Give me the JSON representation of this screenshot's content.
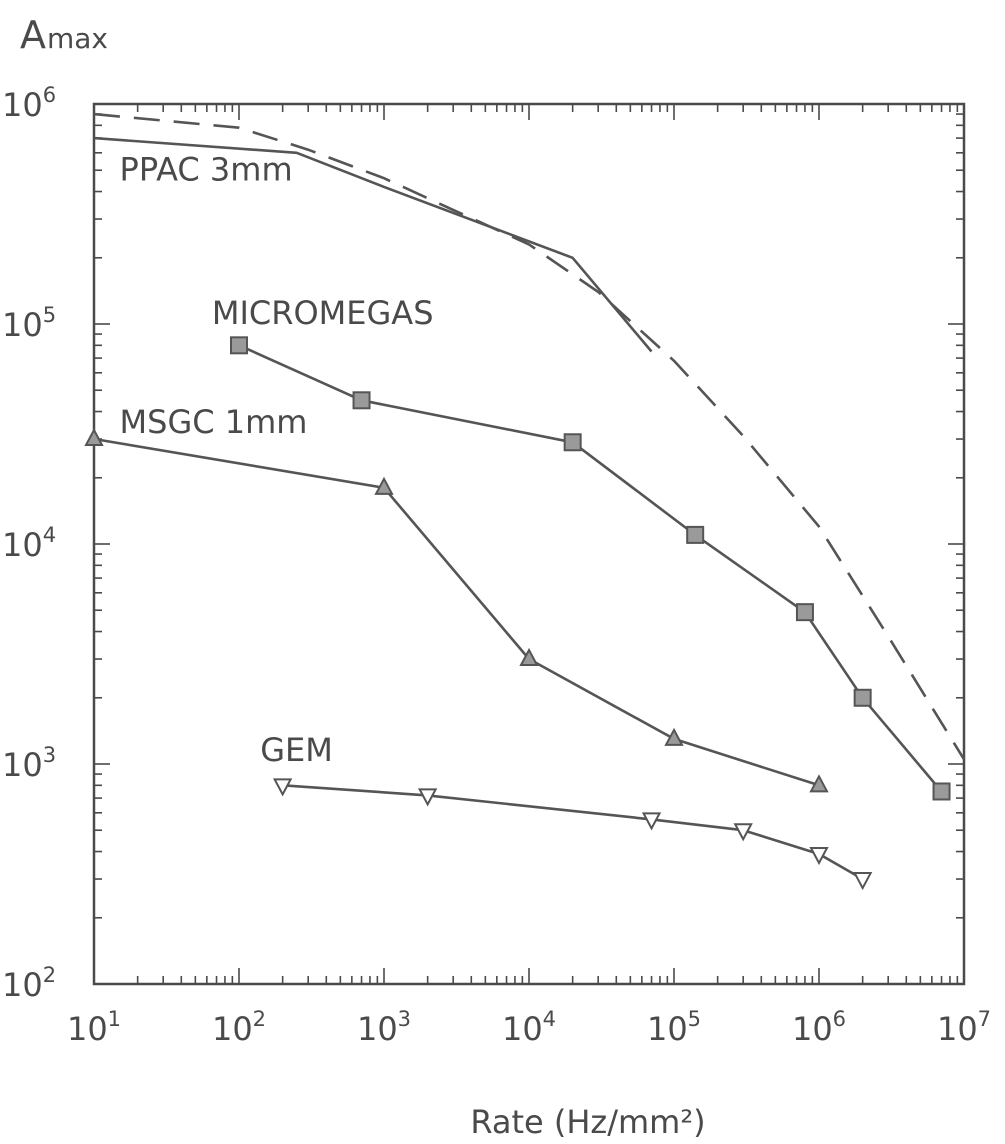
{
  "chart_data": {
    "type": "line",
    "title": "",
    "xlabel": "Rate (Hz/mm²)",
    "ylabel": "A",
    "ylabel_sub": "max",
    "xscale": "log",
    "yscale": "log",
    "xlim": [
      10,
      10000000
    ],
    "ylim": [
      100,
      1000000
    ],
    "xticks": [
      {
        "value": 10,
        "base": "10",
        "exp": "1"
      },
      {
        "value": 100,
        "base": "10",
        "exp": "2"
      },
      {
        "value": 1000,
        "base": "10",
        "exp": "3"
      },
      {
        "value": 10000,
        "base": "10",
        "exp": "4"
      },
      {
        "value": 100000,
        "base": "10",
        "exp": "5"
      },
      {
        "value": 1000000,
        "base": "10",
        "exp": "6"
      },
      {
        "value": 10000000,
        "base": "10",
        "exp": "7"
      }
    ],
    "yticks": [
      {
        "value": 100,
        "base": "10",
        "exp": "2"
      },
      {
        "value": 1000,
        "base": "10",
        "exp": "3"
      },
      {
        "value": 10000,
        "base": "10",
        "exp": "4"
      },
      {
        "value": 100000,
        "base": "10",
        "exp": "5"
      },
      {
        "value": 1000000,
        "base": "10",
        "exp": "6"
      }
    ],
    "grid": false,
    "legend": "none",
    "color": "#555555",
    "marker_fill": "#9a9a9a",
    "series": [
      {
        "name": "PPAC 3mm",
        "marker": "none",
        "dash": "none",
        "points": [
          [
            10,
            700000
          ],
          [
            250,
            600000
          ],
          [
            1000,
            420000
          ],
          [
            20000,
            200000
          ],
          [
            70000,
            75000
          ]
        ]
      },
      {
        "name": "",
        "marker": "none",
        "dash": "dashed",
        "points": [
          [
            10,
            900000
          ],
          [
            100,
            780000
          ],
          [
            300,
            620000
          ],
          [
            1000,
            460000
          ],
          [
            3000,
            330000
          ],
          [
            10000,
            230000
          ],
          [
            30000,
            140000
          ],
          [
            100000,
            68000
          ],
          [
            300000,
            31000
          ],
          [
            1000000,
            12000
          ],
          [
            3000000,
            3800
          ],
          [
            10000000,
            1050
          ]
        ]
      },
      {
        "name": "MICROMEGAS",
        "marker": "square",
        "dash": "none",
        "points": [
          [
            100,
            80000
          ],
          [
            700,
            45000
          ],
          [
            20000,
            29000
          ],
          [
            140000,
            11000
          ],
          [
            800000,
            4900
          ],
          [
            2000000,
            2000
          ],
          [
            7000000,
            750
          ]
        ]
      },
      {
        "name": "MSGC 1mm",
        "marker": "triangle-up",
        "dash": "none",
        "points": [
          [
            10,
            30000
          ],
          [
            1000,
            18000
          ],
          [
            10000,
            3000
          ],
          [
            100000,
            1300
          ],
          [
            1000000,
            800
          ]
        ]
      },
      {
        "name": "GEM",
        "marker": "triangle-down",
        "dash": "none",
        "points": [
          [
            200,
            800
          ],
          [
            2000,
            720
          ],
          [
            70000,
            560
          ],
          [
            300000,
            500
          ],
          [
            1000000,
            390
          ],
          [
            2000000,
            300
          ]
        ]
      }
    ],
    "series_labels": [
      {
        "text": "PPAC 3mm",
        "at": [
          15,
          450000
        ]
      },
      {
        "text": "MICROMEGAS",
        "at": [
          65,
          100000
        ]
      },
      {
        "text": "MSGC 1mm",
        "at": [
          15,
          32000
        ]
      },
      {
        "text": "GEM",
        "at": [
          140,
          1030
        ]
      }
    ]
  }
}
